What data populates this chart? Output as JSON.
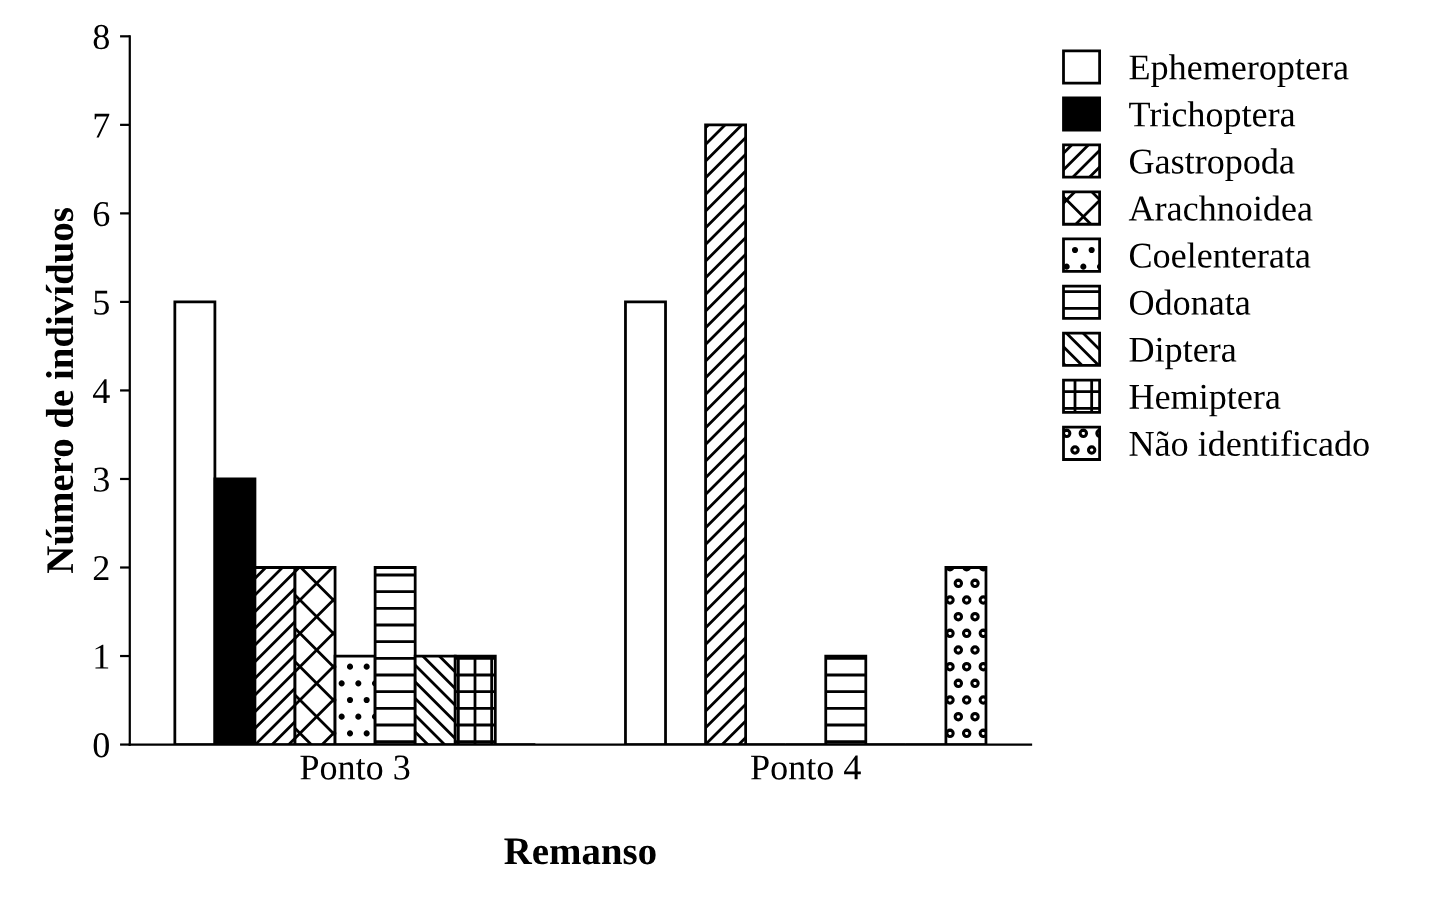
{
  "chart_data": {
    "type": "bar",
    "xlabel": "Remanso",
    "ylabel": "Número de indivíduos",
    "categories": [
      "Ponto 3",
      "Ponto 4"
    ],
    "series": [
      {
        "name": "Ephemeroptera",
        "color": "#ffffff",
        "values": [
          5,
          5
        ]
      },
      {
        "name": "Trichoptera",
        "color": "#000000",
        "values": [
          3,
          0
        ]
      },
      {
        "name": "Gastropoda",
        "color": "#000000",
        "values": [
          2,
          7
        ]
      },
      {
        "name": "Arachnoidea",
        "color": "#000000",
        "values": [
          2,
          0
        ]
      },
      {
        "name": "Coelenterata",
        "color": "#000000",
        "values": [
          1,
          0
        ]
      },
      {
        "name": "Odonata",
        "color": "#000000",
        "values": [
          2,
          1
        ]
      },
      {
        "name": "Diptera",
        "color": "#000000",
        "values": [
          1,
          0
        ]
      },
      {
        "name": "Hemiptera",
        "color": "#000000",
        "values": [
          1,
          0
        ]
      },
      {
        "name": "Não identificado",
        "color": "#000000",
        "values": [
          0,
          2
        ]
      }
    ],
    "ylim": [
      0,
      8
    ],
    "yticks": [
      0,
      1,
      2,
      3,
      4,
      5,
      6,
      7,
      8
    ],
    "grid": false,
    "legend": "right"
  }
}
